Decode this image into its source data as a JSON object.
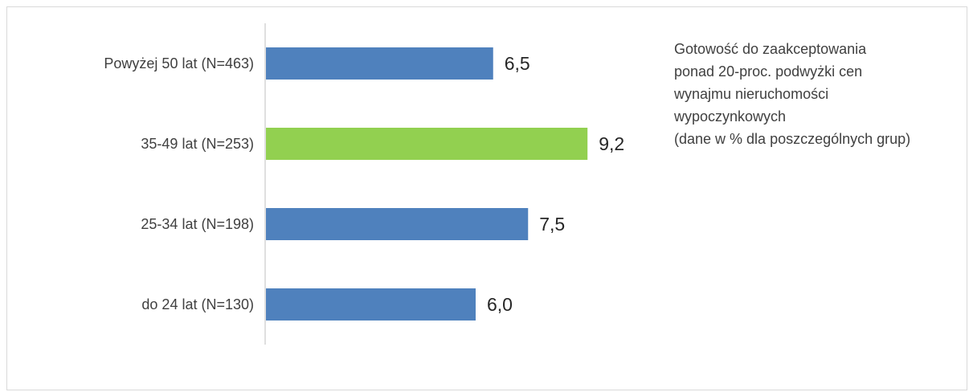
{
  "chart_data": {
    "type": "bar",
    "orientation": "horizontal",
    "categories": [
      "Powyżej 50 lat (N=463)",
      "35-49 lat (N=253)",
      "25-34 lat (N=198)",
      "do 24 lat (N=130)"
    ],
    "values": [
      6.5,
      9.2,
      7.5,
      6.0
    ],
    "value_labels": [
      "6,5",
      "9,2",
      "7,5",
      "6,0"
    ],
    "colors": [
      "#4f81bd",
      "#92d050",
      "#4f81bd",
      "#4f81bd"
    ],
    "xlim": [
      0,
      10
    ],
    "grid": false,
    "legend": "none"
  },
  "note": {
    "lines": [
      "Gotowość do zaakceptowania",
      "ponad 20-proc. podwyżki cen",
      "wynajmu nieruchomości",
      "wypoczynkowych",
      "(dane w % dla poszczególnych grup)"
    ]
  }
}
